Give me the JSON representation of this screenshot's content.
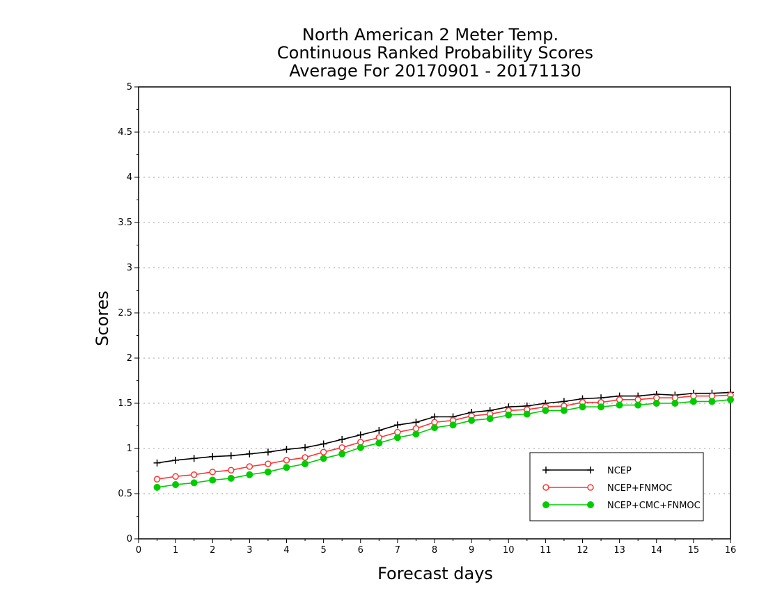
{
  "chart_data": {
    "type": "line",
    "title": [
      "North American 2 Meter Temp.",
      "Continuous Ranked Probability Scores",
      "Average For 20170901 - 20171130"
    ],
    "xlabel": "Forecast days",
    "ylabel": "Scores",
    "xlim": [
      0,
      16
    ],
    "ylim": [
      0,
      5
    ],
    "xticks": [
      "0",
      "1",
      "2",
      "3",
      "4",
      "5",
      "6",
      "7",
      "8",
      "9",
      "10",
      "11",
      "12",
      "13",
      "14",
      "15",
      "16"
    ],
    "yticks": [
      "0",
      "0.5",
      "1",
      "1.5",
      "2",
      "2.5",
      "3",
      "3.5",
      "4",
      "4.5",
      "5"
    ],
    "grid": "horizontal dotted",
    "legend_position": "bottom-right",
    "x": [
      0.5,
      1,
      1.5,
      2,
      2.5,
      3,
      3.5,
      4,
      4.5,
      5,
      5.5,
      6,
      6.5,
      7,
      7.5,
      8,
      8.5,
      9,
      9.5,
      10,
      10.5,
      11,
      11.5,
      12,
      12.5,
      13,
      13.5,
      14,
      14.5,
      15,
      15.5,
      16
    ],
    "series": [
      {
        "name": "NCEP",
        "color": "#000000",
        "marker": "plus",
        "values": [
          0.84,
          0.87,
          0.89,
          0.91,
          0.92,
          0.94,
          0.96,
          0.99,
          1.01,
          1.05,
          1.1,
          1.15,
          1.2,
          1.26,
          1.29,
          1.35,
          1.35,
          1.4,
          1.42,
          1.46,
          1.47,
          1.5,
          1.52,
          1.55,
          1.56,
          1.58,
          1.58,
          1.6,
          1.59,
          1.61,
          1.61,
          1.62
        ]
      },
      {
        "name": "NCEP+FNMOC",
        "color": "#ff3333",
        "marker": "open-circle",
        "values": [
          0.66,
          0.69,
          0.71,
          0.74,
          0.76,
          0.8,
          0.83,
          0.87,
          0.9,
          0.96,
          1.01,
          1.07,
          1.12,
          1.18,
          1.22,
          1.29,
          1.31,
          1.36,
          1.38,
          1.42,
          1.43,
          1.46,
          1.47,
          1.51,
          1.51,
          1.54,
          1.54,
          1.56,
          1.56,
          1.58,
          1.58,
          1.59
        ]
      },
      {
        "name": "NCEP+CMC+FNMOC",
        "color": "#00cc00",
        "marker": "filled-circle",
        "values": [
          0.57,
          0.6,
          0.62,
          0.65,
          0.67,
          0.71,
          0.74,
          0.79,
          0.83,
          0.89,
          0.94,
          1.01,
          1.06,
          1.12,
          1.16,
          1.23,
          1.26,
          1.31,
          1.33,
          1.37,
          1.38,
          1.42,
          1.42,
          1.46,
          1.46,
          1.48,
          1.48,
          1.5,
          1.5,
          1.52,
          1.52,
          1.54
        ]
      }
    ]
  }
}
